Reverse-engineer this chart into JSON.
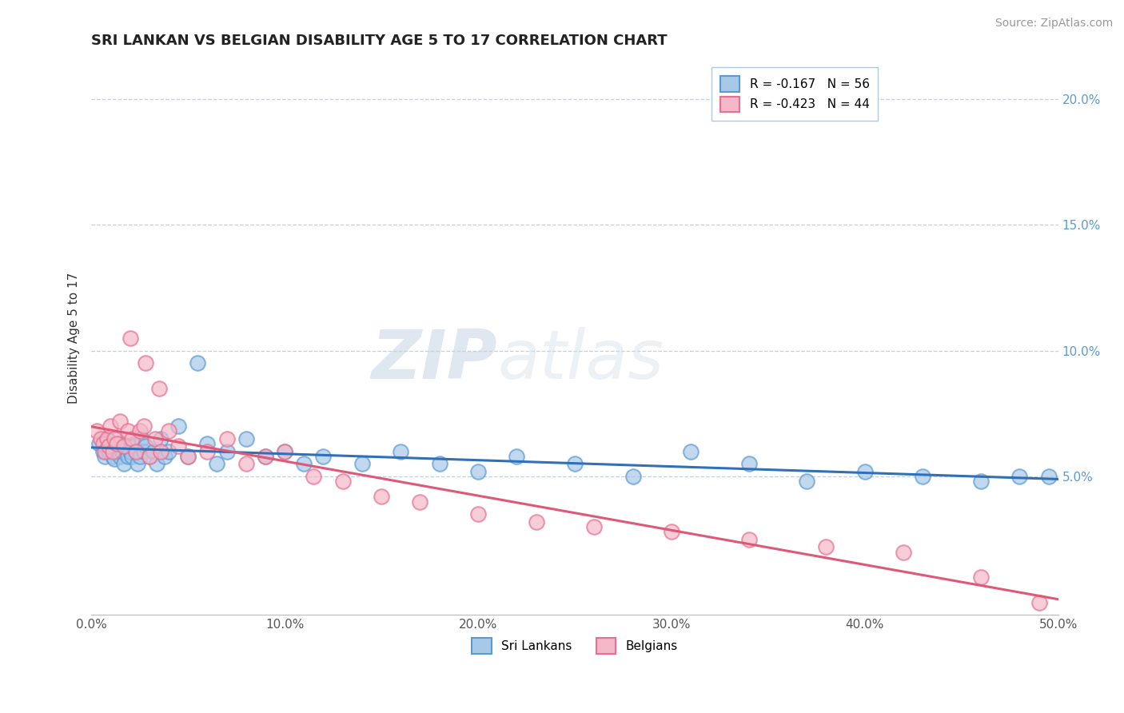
{
  "title": "SRI LANKAN VS BELGIAN DISABILITY AGE 5 TO 17 CORRELATION CHART",
  "source": "Source: ZipAtlas.com",
  "ylabel": "Disability Age 5 to 17",
  "xlim": [
    0.0,
    0.5
  ],
  "ylim": [
    -0.005,
    0.215
  ],
  "xticks": [
    0.0,
    0.1,
    0.2,
    0.3,
    0.4,
    0.5
  ],
  "xtick_labels": [
    "0.0%",
    "10.0%",
    "20.0%",
    "30.0%",
    "40.0%",
    "50.0%"
  ],
  "yticks": [
    0.05,
    0.1,
    0.15,
    0.2
  ],
  "ytick_labels": [
    "5.0%",
    "10.0%",
    "15.0%",
    "20.0%"
  ],
  "sri_lankans_fill": "#a8c8e8",
  "sri_lankans_edge": "#5b9bd5",
  "belgians_fill": "#f4b8c8",
  "belgians_edge": "#e87090",
  "sri_line_color": "#3070b8",
  "bel_line_color": "#e05878",
  "legend_sri_r": "R = -0.167",
  "legend_sri_n": "N = 56",
  "legend_bel_r": "R = -0.423",
  "legend_bel_n": "N = 44",
  "sri_x": [
    0.004,
    0.006,
    0.007,
    0.008,
    0.009,
    0.01,
    0.011,
    0.012,
    0.013,
    0.014,
    0.015,
    0.016,
    0.017,
    0.018,
    0.019,
    0.02,
    0.021,
    0.022,
    0.023,
    0.024,
    0.025,
    0.026,
    0.027,
    0.028,
    0.03,
    0.032,
    0.034,
    0.036,
    0.038,
    0.04,
    0.045,
    0.05,
    0.055,
    0.06,
    0.065,
    0.07,
    0.08,
    0.09,
    0.1,
    0.11,
    0.12,
    0.14,
    0.16,
    0.18,
    0.2,
    0.22,
    0.25,
    0.28,
    0.31,
    0.34,
    0.37,
    0.4,
    0.43,
    0.46,
    0.48,
    0.495
  ],
  "sri_y": [
    0.063,
    0.06,
    0.058,
    0.065,
    0.06,
    0.062,
    0.058,
    0.057,
    0.06,
    0.063,
    0.058,
    0.06,
    0.055,
    0.062,
    0.058,
    0.06,
    0.058,
    0.062,
    0.06,
    0.055,
    0.058,
    0.065,
    0.06,
    0.062,
    0.058,
    0.06,
    0.055,
    0.065,
    0.058,
    0.06,
    0.07,
    0.058,
    0.095,
    0.063,
    0.055,
    0.06,
    0.065,
    0.058,
    0.06,
    0.055,
    0.058,
    0.055,
    0.06,
    0.055,
    0.052,
    0.058,
    0.055,
    0.05,
    0.06,
    0.055,
    0.048,
    0.052,
    0.05,
    0.048,
    0.05,
    0.05
  ],
  "bel_x": [
    0.003,
    0.005,
    0.006,
    0.007,
    0.008,
    0.009,
    0.01,
    0.011,
    0.012,
    0.013,
    0.015,
    0.017,
    0.019,
    0.021,
    0.023,
    0.025,
    0.027,
    0.03,
    0.033,
    0.036,
    0.04,
    0.045,
    0.05,
    0.06,
    0.07,
    0.08,
    0.09,
    0.1,
    0.115,
    0.13,
    0.15,
    0.17,
    0.2,
    0.23,
    0.26,
    0.3,
    0.34,
    0.38,
    0.42,
    0.46,
    0.02,
    0.028,
    0.035,
    0.49
  ],
  "bel_y": [
    0.068,
    0.065,
    0.063,
    0.06,
    0.065,
    0.062,
    0.07,
    0.06,
    0.065,
    0.063,
    0.072,
    0.062,
    0.068,
    0.065,
    0.06,
    0.068,
    0.07,
    0.058,
    0.065,
    0.06,
    0.068,
    0.062,
    0.058,
    0.06,
    0.065,
    0.055,
    0.058,
    0.06,
    0.05,
    0.048,
    0.042,
    0.04,
    0.035,
    0.032,
    0.03,
    0.028,
    0.025,
    0.022,
    0.02,
    0.01,
    0.105,
    0.095,
    0.085,
    0.0
  ],
  "watermark_zip": "ZIP",
  "watermark_atlas": "atlas",
  "background_color": "#ffffff",
  "grid_color": "#c0d0e0",
  "title_color": "#222222",
  "ytick_color": "#5b9bd5",
  "xtick_color": "#555555",
  "ylabel_color": "#333333",
  "title_fontsize": 13,
  "axis_label_fontsize": 11,
  "tick_fontsize": 11,
  "source_fontsize": 10,
  "legend_fontsize": 11
}
